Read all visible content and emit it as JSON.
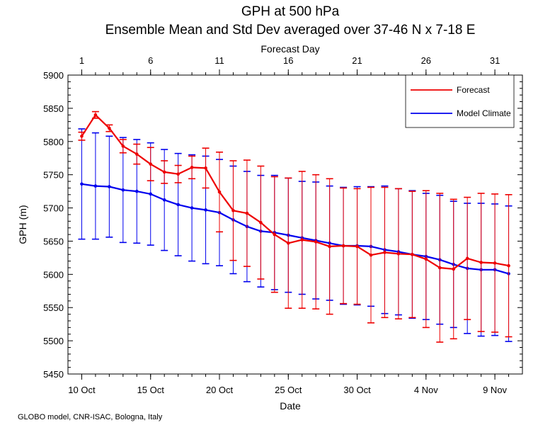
{
  "title": "GPH at 500 hPa",
  "subtitle": "Ensemble Mean and Std Dev averaged over 37-46 N x 7-18 E",
  "footer": "GLOBO model, CNR-ISAC, Bologna, Italy",
  "chart_data": {
    "type": "line",
    "xlabel": "Date",
    "x2label": "Forecast Day",
    "ylabel": "GPH (m)",
    "ylim": [
      5450,
      5900
    ],
    "yticks": [
      5450,
      5500,
      5550,
      5600,
      5650,
      5700,
      5750,
      5800,
      5850,
      5900
    ],
    "xlim": [
      0,
      33
    ],
    "x": [
      1,
      2,
      3,
      4,
      5,
      6,
      7,
      8,
      9,
      10,
      11,
      12,
      13,
      14,
      15,
      16,
      17,
      18,
      19,
      20,
      21,
      22,
      23,
      24,
      25,
      26,
      27,
      28,
      29,
      30,
      31,
      32
    ],
    "bottom_ticks": [
      {
        "pos": 1,
        "label": "10 Oct"
      },
      {
        "pos": 6,
        "label": "15 Oct"
      },
      {
        "pos": 11,
        "label": "20 Oct"
      },
      {
        "pos": 16,
        "label": "25 Oct"
      },
      {
        "pos": 21,
        "label": "30 Oct"
      },
      {
        "pos": 26,
        "label": "4 Nov"
      },
      {
        "pos": 31,
        "label": "9 Nov"
      }
    ],
    "top_ticks": [
      {
        "pos": 1,
        "label": "1"
      },
      {
        "pos": 6,
        "label": "6"
      },
      {
        "pos": 11,
        "label": "11"
      },
      {
        "pos": 16,
        "label": "16"
      },
      {
        "pos": 21,
        "label": "21"
      },
      {
        "pos": 26,
        "label": "26"
      },
      {
        "pos": 31,
        "label": "31"
      }
    ],
    "legend_position": "top-right",
    "grid": false,
    "series": [
      {
        "name": "Forecast",
        "color": "#ee0000",
        "values": [
          5808,
          5840,
          5820,
          5793,
          5781,
          5766,
          5754,
          5751,
          5761,
          5760,
          5724,
          5696,
          5692,
          5678,
          5660,
          5647,
          5652,
          5649,
          5642,
          5643,
          5642,
          5629,
          5633,
          5631,
          5630,
          5623,
          5610,
          5608,
          5624,
          5618,
          5617,
          5613
        ],
        "std": [
          6,
          5,
          5,
          10,
          15,
          25,
          17,
          13,
          17,
          30,
          60,
          75,
          80,
          85,
          87,
          98,
          103,
          101,
          102,
          87,
          87,
          102,
          98,
          98,
          95,
          103,
          112,
          105,
          92,
          104,
          104,
          107
        ]
      },
      {
        "name": "Model Climate",
        "color": "#0000ee",
        "values": [
          5736,
          5733,
          5732,
          5727,
          5725,
          5721,
          5712,
          5705,
          5700,
          5697,
          5693,
          5682,
          5672,
          5665,
          5663,
          5659,
          5655,
          5651,
          5647,
          5643,
          5643,
          5642,
          5637,
          5634,
          5630,
          5627,
          5622,
          5615,
          5609,
          5607,
          5607,
          5601
        ],
        "std": [
          83,
          80,
          76,
          79,
          78,
          77,
          76,
          77,
          80,
          81,
          80,
          81,
          83,
          84,
          86,
          86,
          85,
          88,
          86,
          88,
          89,
          90,
          96,
          95,
          96,
          95,
          97,
          95,
          98,
          100,
          99,
          102
        ]
      }
    ]
  }
}
